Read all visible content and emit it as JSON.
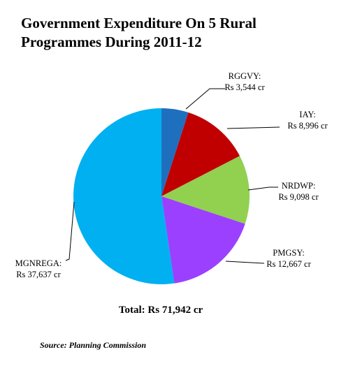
{
  "title_line1": "Government Expenditure On 5 Rural",
  "title_line2": "Programmes During 2011-12",
  "total_label": "Total: Rs 71,942 cr",
  "source_label": "Source: Planning Commission",
  "chart_data": {
    "type": "pie",
    "title": "Government Expenditure On 5 Rural Programmes During 2011-12",
    "unit": "Rs cr",
    "total": 71942,
    "slices": [
      {
        "name": "RGGVY",
        "value": 3544,
        "label": "Rs 3,544 cr",
        "color": "#1f6fbf"
      },
      {
        "name": "IAY",
        "value": 8996,
        "label": "Rs 8,996 cr",
        "color": "#c00000"
      },
      {
        "name": "NRDWP",
        "value": 9098,
        "label": "Rs 9,098 cr",
        "color": "#92d050"
      },
      {
        "name": "PMGSY",
        "value": 12667,
        "label": "Rs 12,667 cr",
        "color": "#9b40ff"
      },
      {
        "name": "MGNREGA",
        "value": 37637,
        "label": "Rs 37,637 cr",
        "color": "#00b0f0"
      }
    ]
  }
}
